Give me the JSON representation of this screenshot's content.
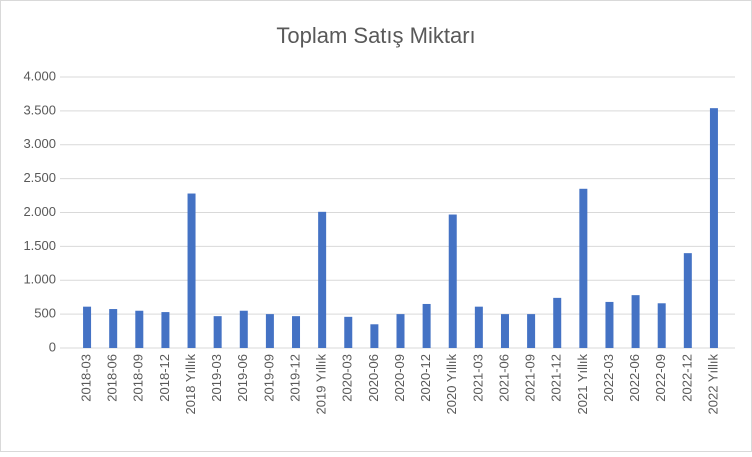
{
  "chart_data": {
    "type": "bar",
    "title": "Toplam Satış Miktarı",
    "categories": [
      "2018-03",
      "2018-06",
      "2018-09",
      "2018-12",
      "2018 Yıllık",
      "2019-03",
      "2019-06",
      "2019-09",
      "2019-12",
      "2019 Yıllık",
      "2020-03",
      "2020-06",
      "2020-09",
      "2020-12",
      "2020 Yıllık",
      "2021-03",
      "2021-06",
      "2021-09",
      "2021-12",
      "2021 Yıllık",
      "2022-03",
      "2022-06",
      "2022-09",
      "2022-12",
      "2022 Yıllık"
    ],
    "values": [
      610,
      575,
      550,
      530,
      2280,
      470,
      550,
      500,
      470,
      2010,
      460,
      350,
      500,
      650,
      1970,
      610,
      500,
      500,
      740,
      2350,
      680,
      780,
      660,
      1400,
      3540
    ],
    "color": "#4472c4",
    "ylim": [
      0,
      4000
    ],
    "yticks": [
      0,
      500,
      {
        "value": 1000,
        "label": "1.000"
      },
      {
        "value": 1500,
        "label": "1.500"
      },
      {
        "value": 2000,
        "label": "2.000"
      },
      {
        "value": 2500,
        "label": "2.500"
      },
      {
        "value": 3000,
        "label": "3.000"
      },
      {
        "value": 3500,
        "label": "3.500"
      },
      {
        "value": 4000,
        "label": "4.000"
      }
    ],
    "grid": true
  }
}
